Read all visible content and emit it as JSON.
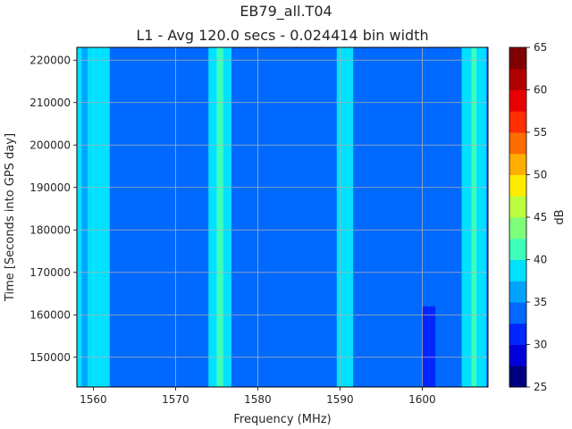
{
  "chart_data": {
    "type": "heatmap",
    "title": "EB79_all.T04",
    "subtitle": "L1 - Avg 120.0 secs - 0.024414 bin width",
    "xlabel": "Frequency (MHz)",
    "ylabel": "Time [Seconds into GPS day]",
    "xlim": [
      1558,
      1608
    ],
    "ylim": [
      143000,
      223000
    ],
    "xticks": [
      1560,
      1570,
      1580,
      1590,
      1600
    ],
    "xtick_labels": [
      "1560",
      "1570",
      "1580",
      "1590",
      "1600"
    ],
    "yticks": [
      150000,
      160000,
      170000,
      180000,
      190000,
      200000,
      210000,
      220000
    ],
    "ytick_labels": [
      "150000",
      "160000",
      "170000",
      "180000",
      "190000",
      "200000",
      "210000",
      "220000"
    ],
    "grid": true,
    "background_level_db": 32.5,
    "bands": [
      {
        "x_start": 1558.0,
        "x_end": 1558.6,
        "level_db": 37.5
      },
      {
        "x_start": 1558.6,
        "x_end": 1559.3,
        "level_db": 35.0
      },
      {
        "x_start": 1559.3,
        "x_end": 1562.0,
        "level_db": 37.5
      },
      {
        "x_start": 1574.0,
        "x_end": 1576.8,
        "level_db": 37.5
      },
      {
        "x_start": 1575.0,
        "x_end": 1575.8,
        "level_db": 40.0
      },
      {
        "x_start": 1589.6,
        "x_end": 1591.6,
        "level_db": 37.5
      },
      {
        "x_start": 1604.8,
        "x_end": 1607.8,
        "level_db": 37.5
      },
      {
        "x_start": 1606.0,
        "x_end": 1606.6,
        "level_db": 40.0
      }
    ],
    "low_regions": [
      {
        "x_start": 1600.0,
        "x_end": 1601.6,
        "y_start": 143000,
        "y_end": 162000,
        "level_db": 30.0
      }
    ],
    "colorbar": {
      "label": "dB",
      "min": 25,
      "max": 65,
      "step": 2.5,
      "ticks": [
        "25",
        "30",
        "35",
        "40",
        "45",
        "50",
        "55",
        "60",
        "65"
      ],
      "colors": [
        "#00007f",
        "#0000d8",
        "#0027ff",
        "#0069ff",
        "#00a4ff",
        "#00e0ff",
        "#3dffba",
        "#7dff7a",
        "#baff3d",
        "#ffec00",
        "#ffae00",
        "#ff6c00",
        "#ff2e00",
        "#e80000",
        "#b00000",
        "#7f0000"
      ]
    }
  }
}
